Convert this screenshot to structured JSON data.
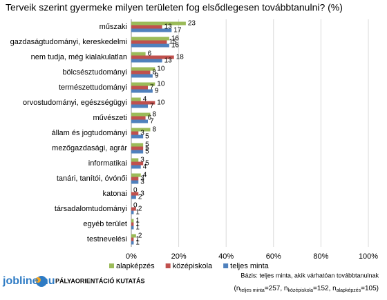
{
  "chart_data": {
    "type": "hbar",
    "title": "Terveik szerint gyermeke milyen területen fog elsődlegesen továbbtanulni? (%)",
    "categories": [
      "műszaki",
      "gazdaságtudományi, kereskedelmi",
      "nem tudja, még kialakulatlan",
      "bölcsésztudományi",
      "természettudományi",
      "orvostudományi, egészségügyi",
      "művészeti",
      "állam és jogtudományi",
      "mezőgazdasági, agrár",
      "informatikai",
      "tanári, tanítói, óvónői",
      "katonai",
      "társadalomtudományi",
      "egyéb terület",
      "testnevelési"
    ],
    "series": [
      {
        "name": "alapképzés",
        "color": "#9bbb59",
        "values": [
          23,
          16,
          6,
          10,
          10,
          4,
          8,
          8,
          5,
          3,
          4,
          0,
          0,
          1,
          2
        ]
      },
      {
        "name": "középiskola",
        "color": "#c0504d",
        "values": [
          13,
          15,
          18,
          8,
          7,
          10,
          6,
          3,
          5,
          5,
          3,
          3,
          2,
          1,
          1
        ]
      },
      {
        "name": "teljes minta",
        "color": "#4f81bd",
        "values": [
          17,
          16,
          13,
          9,
          9,
          7,
          7,
          5,
          5,
          4,
          3,
          2,
          1,
          1,
          1
        ]
      }
    ],
    "xlim": [
      0,
      100
    ],
    "xticks": [
      {
        "value": 0,
        "label": "0%"
      },
      {
        "value": 20,
        "label": "20%"
      },
      {
        "value": 40,
        "label": "40%"
      },
      {
        "value": 60,
        "label": "60%"
      },
      {
        "value": 80,
        "label": "80%"
      },
      {
        "value": 100,
        "label": "100%"
      }
    ],
    "grid": true,
    "legend": "bottom"
  },
  "footer": {
    "logo": "jobline.hu",
    "survey": "PÁLYAORIENTÁCIÓ KUTATÁS",
    "basis": "Bázis: teljes minta, akik várhatóan továbbtanulnak",
    "sample_symbol": "n",
    "samples": [
      {
        "label": "teljes minta",
        "value": 257
      },
      {
        "label": "középiskola",
        "value": 152
      },
      {
        "label": "alapképzés",
        "value": 105
      }
    ]
  }
}
